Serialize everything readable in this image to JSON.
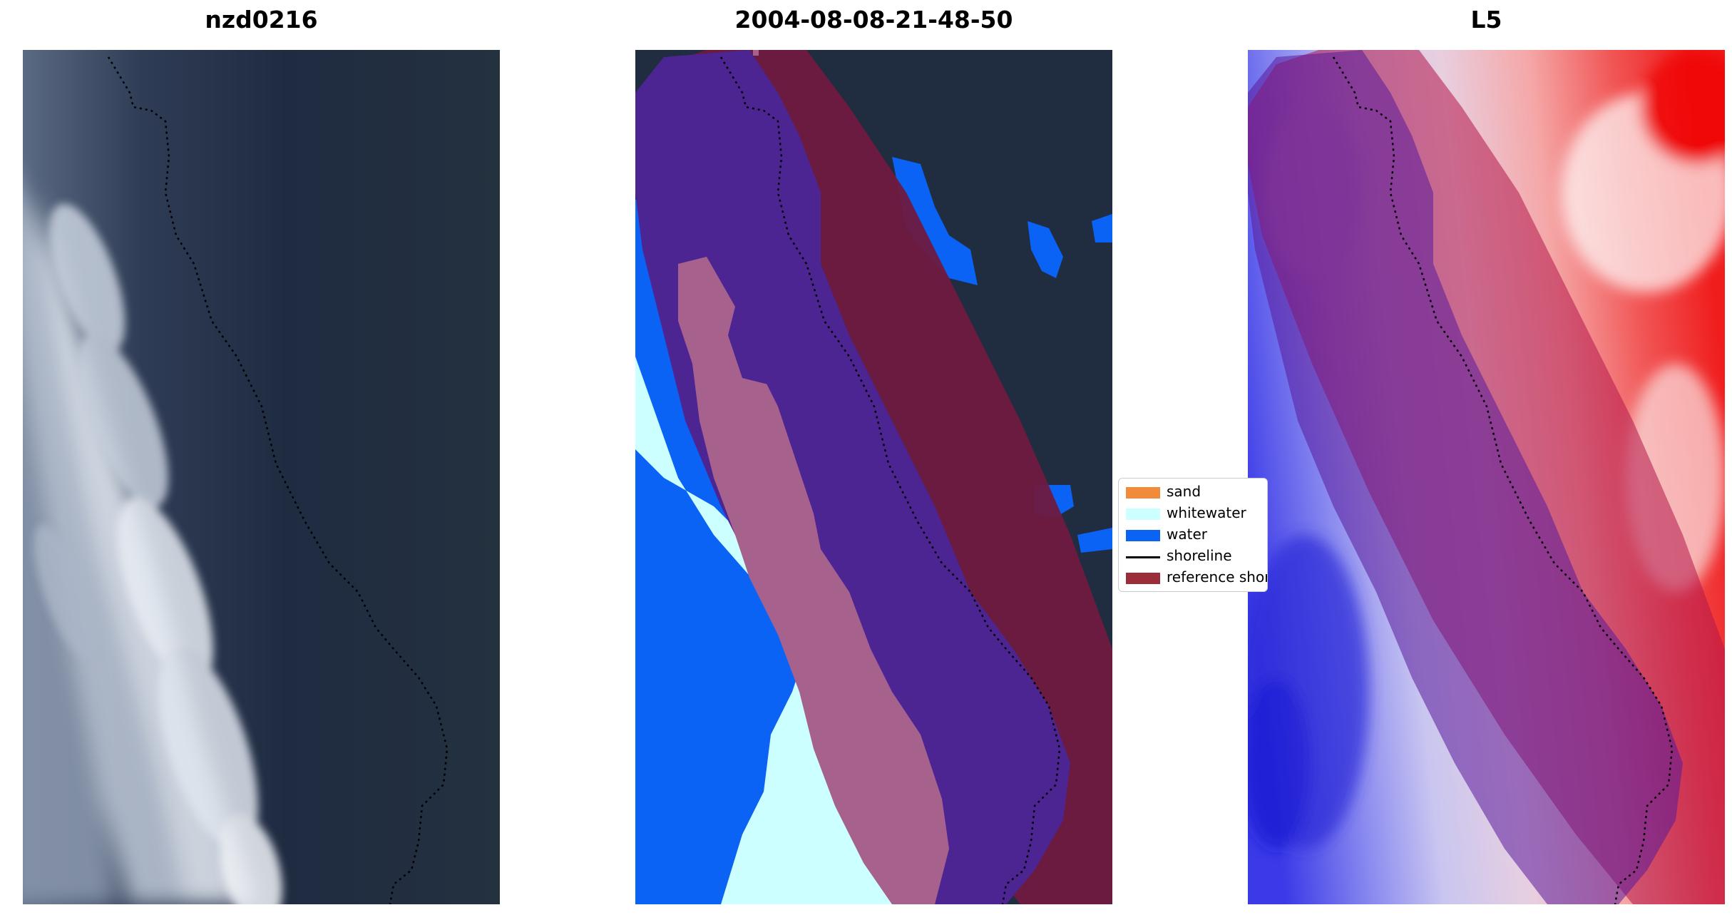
{
  "figure": {
    "panels": [
      {
        "title": "nzd0216",
        "content": "satellite image (RGB) with shoreline trace"
      },
      {
        "title": "2004-08-08-21-48-50",
        "content": "classified image with reference shoreline buffer"
      },
      {
        "title": "L5",
        "content": "water index map with reference shoreline buffer"
      }
    ]
  },
  "legend": {
    "items": [
      {
        "label": "sand",
        "color": "#f28a3c",
        "kind": "patch"
      },
      {
        "label": "whitewater",
        "color": "#ccffff",
        "kind": "patch"
      },
      {
        "label": "water",
        "color": "#0b63f6",
        "kind": "patch"
      },
      {
        "label": "shoreline",
        "color": "#000000",
        "kind": "line"
      },
      {
        "label": "reference shoreline buffer",
        "color": "#9b2d3a",
        "kind": "patch"
      }
    ]
  },
  "colors": {
    "ocean_dark": "#1e2a3d",
    "whitewater_cloud": "#c8d0dc",
    "buffer_purple": "#4d2593",
    "buffer_maroon": "#6f1a3f",
    "sand_mauve": "#a6628c",
    "index_blue": "#3535e6",
    "index_red": "#f01d1d"
  }
}
